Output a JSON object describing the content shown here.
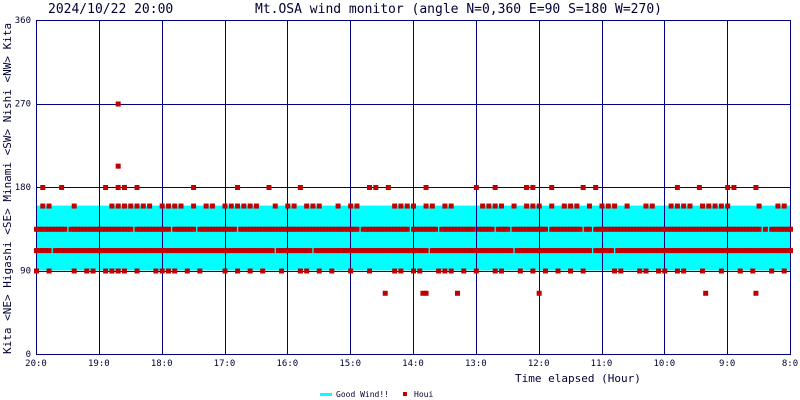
{
  "header": {
    "timestamp": "2024/10/22 20:00",
    "title": "Mt.OSA wind monitor (angle N=0,360 E=90 S=180 W=270)"
  },
  "colors": {
    "background": "#ffffff",
    "grid": "#000080",
    "good_band": "#00ffff",
    "points": "#c00000",
    "text": "#000033"
  },
  "chart_data": {
    "type": "scatter",
    "title": "Mt.OSA wind monitor (angle N=0,360 E=90 S=180 W=270)",
    "xlabel": "Time elapsed (Hour)",
    "ylabel_segments": [
      "Kita",
      "<NE>",
      "Higashi",
      "<SE>",
      "Minami",
      "<SW>",
      "Nishi",
      "<NW>",
      "Kita"
    ],
    "x_ticks": [
      "20:0",
      "19:0",
      "18:0",
      "17:0",
      "16:0",
      "15:0",
      "14:0",
      "13:0",
      "12:0",
      "11:0",
      "10:0",
      "9:0",
      "8:0"
    ],
    "y_ticks": [
      "0",
      "90",
      "180",
      "270",
      "360"
    ],
    "xlim": [
      0,
      12
    ],
    "ylim": [
      0,
      360
    ],
    "x_direction": "hours elapsed from 20:00 toward 8:00 (left to right)",
    "grid": true,
    "legend_position": "bottom-center",
    "series": [
      {
        "name": "Good Wind!!",
        "kind": "band",
        "range": [
          90,
          160
        ]
      },
      {
        "name": "Houi",
        "kind": "points",
        "tracks": [
          {
            "y": 160,
            "every": 0.1,
            "density": 0.5
          },
          {
            "y": 135,
            "every": 0.05,
            "density": 0.92
          },
          {
            "y": 112,
            "every": 0.05,
            "density": 0.95
          },
          {
            "y": 90,
            "every": 0.1,
            "density": 0.45
          },
          {
            "y": 180,
            "every": 0.1,
            "density": 0.18
          }
        ],
        "extra_points": [
          {
            "x": 1.3,
            "y": 270
          },
          {
            "x": 1.3,
            "y": 203
          },
          {
            "x": 5.55,
            "y": 66
          },
          {
            "x": 6.15,
            "y": 66
          },
          {
            "x": 6.2,
            "y": 66
          },
          {
            "x": 6.7,
            "y": 66
          },
          {
            "x": 8.0,
            "y": 66
          },
          {
            "x": 10.65,
            "y": 66
          },
          {
            "x": 11.45,
            "y": 66
          },
          {
            "x": 10.55,
            "y": 180
          },
          {
            "x": 11.45,
            "y": 180
          },
          {
            "x": 7.8,
            "y": 180
          },
          {
            "x": 3.2,
            "y": 180
          }
        ]
      }
    ]
  }
}
